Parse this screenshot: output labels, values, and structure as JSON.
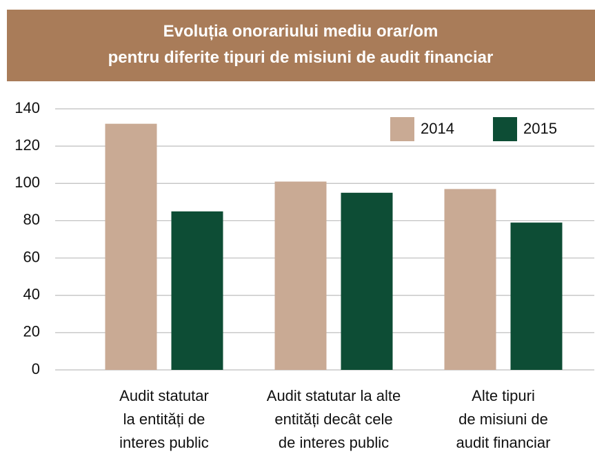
{
  "chart_data": {
    "type": "bar",
    "title": "Evoluția onorariului mediu orar/om\npentru diferite tipuri de misiuni de audit financiar",
    "categories": [
      "Audit statutar\nla entități de\ninteres public",
      "Audit statutar la alte\nentități decât cele\nde interes public",
      "Alte tipuri\nde misiuni de\naudit financiar"
    ],
    "series": [
      {
        "name": "2014",
        "color": "#c9aa94",
        "values": [
          132,
          101,
          97
        ]
      },
      {
        "name": "2015",
        "color": "#0d4d35",
        "values": [
          85,
          95,
          79
        ]
      }
    ],
    "ylim": [
      0,
      140
    ],
    "yticks": [
      0,
      20,
      40,
      60,
      80,
      100,
      120,
      140
    ],
    "grid": true,
    "legend": "upper right"
  }
}
